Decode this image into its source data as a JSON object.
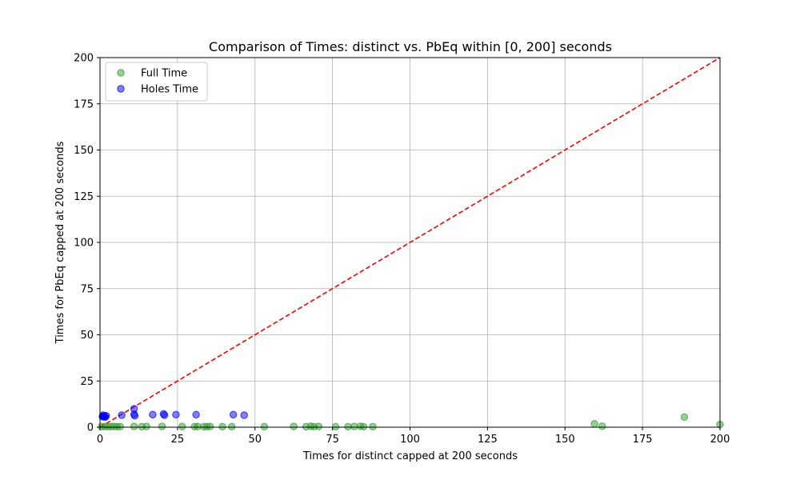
{
  "chart_data": {
    "type": "scatter",
    "title": "Comparison of Times: distinct vs. PbEq within [0, 200] seconds",
    "xlabel": "Times for distinct capped at 200 seconds",
    "ylabel": "Times for PbEq capped at 200 seconds",
    "xlim": [
      0,
      200
    ],
    "ylim": [
      0,
      200
    ],
    "xticks": [
      0,
      25,
      50,
      75,
      100,
      125,
      150,
      175,
      200
    ],
    "yticks": [
      0,
      25,
      50,
      75,
      100,
      125,
      150,
      175,
      200
    ],
    "grid": true,
    "legend_position": "top-left",
    "reference_line": {
      "points": [
        [
          0,
          0
        ],
        [
          200,
          200
        ]
      ],
      "color": "#ff0000",
      "style": "dashed"
    },
    "series": [
      {
        "name": "Full Time",
        "color": "#2ca02c",
        "points": [
          [
            0.5,
            0.3
          ],
          [
            1.5,
            0.4
          ],
          [
            2.5,
            0.3
          ],
          [
            3.5,
            0.3
          ],
          [
            4.5,
            0.4
          ],
          [
            5.5,
            0.3
          ],
          [
            6.5,
            0.3
          ],
          [
            11,
            0.4
          ],
          [
            13.5,
            0.3
          ],
          [
            15,
            0.4
          ],
          [
            20,
            0.4
          ],
          [
            26.5,
            0.4
          ],
          [
            30.5,
            0.3
          ],
          [
            31.5,
            0.4
          ],
          [
            33.5,
            0.3
          ],
          [
            34.5,
            0.3
          ],
          [
            35.5,
            0.4
          ],
          [
            39.5,
            0.3
          ],
          [
            42.5,
            0.3
          ],
          [
            53,
            0.3
          ],
          [
            62.5,
            0.4
          ],
          [
            66.5,
            0.3
          ],
          [
            68,
            0.5
          ],
          [
            69,
            0.3
          ],
          [
            70.5,
            0.4
          ],
          [
            76,
            0.3
          ],
          [
            80,
            0.3
          ],
          [
            82,
            0.4
          ],
          [
            84,
            0.5
          ],
          [
            85,
            0.3
          ],
          [
            88,
            0.3
          ],
          [
            159.5,
            1.8
          ],
          [
            162,
            0.5
          ],
          [
            188.5,
            5.5
          ],
          [
            200,
            1.5
          ]
        ]
      },
      {
        "name": "Holes Time",
        "color": "#0000ff",
        "points": [
          [
            0.8,
            5.8
          ],
          [
            1.0,
            6.5
          ],
          [
            1.3,
            5.6
          ],
          [
            1.5,
            6.0
          ],
          [
            1.7,
            5.5
          ],
          [
            2.0,
            6.2
          ],
          [
            1.2,
            5.9
          ],
          [
            7,
            6.5
          ],
          [
            11,
            7.0
          ],
          [
            11,
            10.0
          ],
          [
            11.2,
            6.2
          ],
          [
            17,
            6.8
          ],
          [
            20.5,
            7.2
          ],
          [
            20.8,
            6.5
          ],
          [
            24.5,
            6.8
          ],
          [
            31,
            6.8
          ],
          [
            43,
            6.8
          ],
          [
            46.5,
            6.5
          ]
        ]
      }
    ]
  }
}
